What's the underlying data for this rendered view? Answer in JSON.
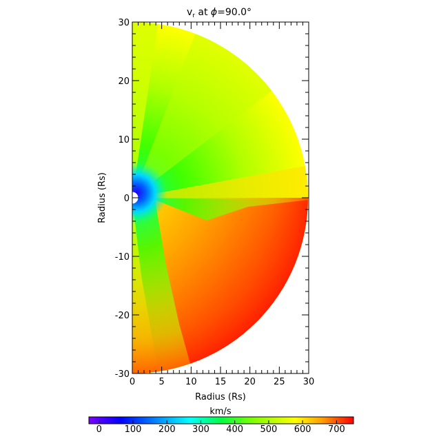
{
  "chart_data": {
    "type": "heatmap",
    "title": {
      "prefix": "v",
      "subscript": "r",
      "middle": " at ",
      "symbol": "ϕ",
      "suffix": "=90.0°"
    },
    "xlabel": "Radius (Rs)",
    "ylabel": "Radius (Rs)",
    "xlim": [
      0,
      30
    ],
    "ylim": [
      -30,
      30
    ],
    "x_ticks": [
      0,
      5,
      10,
      15,
      20,
      25,
      30
    ],
    "y_ticks": [
      -30,
      -20,
      -10,
      0,
      10,
      20,
      30
    ],
    "domain_shape": "half-disk, r from 1 to 30 Rs",
    "colorbar": {
      "label": "km/s",
      "range": [
        -30,
        750
      ],
      "ticks": [
        0,
        100,
        200,
        300,
        400,
        500,
        600,
        700
      ],
      "colors": [
        "#7a00ff",
        "#0000ff",
        "#00b4ff",
        "#00ffff",
        "#00ff60",
        "#7fff00",
        "#ffff00",
        "#ffb000",
        "#ff6000",
        "#ff0000"
      ]
    },
    "features": [
      {
        "region": "northern lobe near equator (0-10 Rs, 0 to 30)",
        "value_range": [
          400,
          520
        ]
      },
      {
        "region": "slow low-latitude core near the Sun",
        "value_range": [
          0,
          150
        ]
      },
      {
        "region": "southern outer region (15-30 Rs, -5 to -25)",
        "value_range": [
          650,
          740
        ]
      },
      {
        "region": "equatorial stream band",
        "value_range": [
          580,
          650
        ]
      }
    ]
  }
}
